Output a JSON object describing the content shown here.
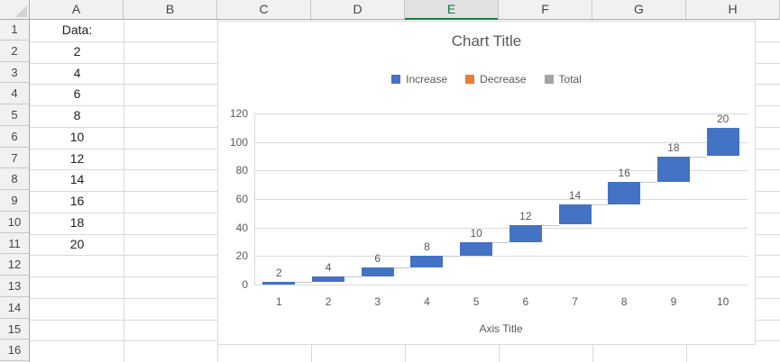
{
  "spreadsheet": {
    "column_headers": [
      "A",
      "B",
      "C",
      "D",
      "E",
      "F",
      "G",
      "H"
    ],
    "selected_column": "E",
    "row_headers": [
      "1",
      "2",
      "3",
      "4",
      "5",
      "6",
      "7",
      "8",
      "9",
      "10",
      "11",
      "12",
      "13",
      "14",
      "15",
      "16"
    ],
    "column_a_cells": [
      "Data:",
      "2",
      "4",
      "6",
      "8",
      "10",
      "12",
      "14",
      "16",
      "18",
      "20"
    ]
  },
  "chart": {
    "title": "Chart Title",
    "axis_title": "Axis Title",
    "legend": [
      {
        "label": "Increase",
        "color": "#4472C4"
      },
      {
        "label": "Decrease",
        "color": "#ED7D31"
      },
      {
        "label": "Total",
        "color": "#A5A5A5"
      }
    ]
  },
  "chart_data": {
    "type": "bar",
    "subtype": "waterfall",
    "title": "Chart Title",
    "xlabel": "Axis Title",
    "ylabel": "",
    "categories": [
      "1",
      "2",
      "3",
      "4",
      "5",
      "6",
      "7",
      "8",
      "9",
      "10"
    ],
    "values": [
      2,
      4,
      6,
      8,
      10,
      12,
      14,
      16,
      18,
      20
    ],
    "cumulative_tops": [
      2,
      6,
      12,
      20,
      30,
      42,
      56,
      72,
      90,
      110
    ],
    "data_labels": [
      "2",
      "4",
      "6",
      "8",
      "10",
      "12",
      "14",
      "16",
      "18",
      "20"
    ],
    "ylim": [
      0,
      120
    ],
    "yticks": [
      0,
      20,
      40,
      60,
      80,
      100,
      120
    ],
    "grid": true,
    "legend_position": "top",
    "series": [
      {
        "name": "Increase",
        "color": "#4472C4"
      },
      {
        "name": "Decrease",
        "color": "#ED7D31"
      },
      {
        "name": "Total",
        "color": "#A5A5A5"
      }
    ],
    "bar_color": "#4472C4",
    "connector_color": "#C8C8C8",
    "gridline_color": "#D9D9D9",
    "label_color": "#595959"
  },
  "colors": {
    "selected_header_accent": "#107C41",
    "selected_header_bg": "#E1E1E1",
    "header_bg": "#F1F1F1",
    "grid": "#D9D9D9"
  }
}
